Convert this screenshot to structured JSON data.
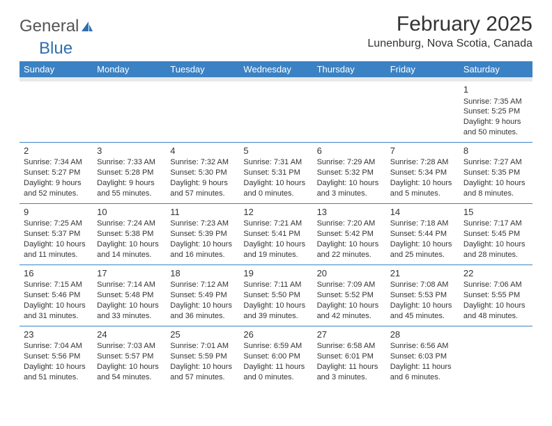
{
  "logo": {
    "text1": "General",
    "text2": "Blue"
  },
  "title": "February 2025",
  "location": "Lunenburg, Nova Scotia, Canada",
  "colors": {
    "header_bg": "#3b82c4",
    "header_text": "#ffffff",
    "border": "#3b82c4",
    "spacer_bg": "#e8e8e8",
    "text": "#333333",
    "logo_gray": "#555555",
    "logo_blue": "#2f6fb0"
  },
  "dayHeaders": [
    "Sunday",
    "Monday",
    "Tuesday",
    "Wednesday",
    "Thursday",
    "Friday",
    "Saturday"
  ],
  "weeks": [
    [
      null,
      null,
      null,
      null,
      null,
      null,
      {
        "n": "1",
        "sr": "Sunrise: 7:35 AM",
        "ss": "Sunset: 5:25 PM",
        "d1": "Daylight: 9 hours",
        "d2": "and 50 minutes."
      }
    ],
    [
      {
        "n": "2",
        "sr": "Sunrise: 7:34 AM",
        "ss": "Sunset: 5:27 PM",
        "d1": "Daylight: 9 hours",
        "d2": "and 52 minutes."
      },
      {
        "n": "3",
        "sr": "Sunrise: 7:33 AM",
        "ss": "Sunset: 5:28 PM",
        "d1": "Daylight: 9 hours",
        "d2": "and 55 minutes."
      },
      {
        "n": "4",
        "sr": "Sunrise: 7:32 AM",
        "ss": "Sunset: 5:30 PM",
        "d1": "Daylight: 9 hours",
        "d2": "and 57 minutes."
      },
      {
        "n": "5",
        "sr": "Sunrise: 7:31 AM",
        "ss": "Sunset: 5:31 PM",
        "d1": "Daylight: 10 hours",
        "d2": "and 0 minutes."
      },
      {
        "n": "6",
        "sr": "Sunrise: 7:29 AM",
        "ss": "Sunset: 5:32 PM",
        "d1": "Daylight: 10 hours",
        "d2": "and 3 minutes."
      },
      {
        "n": "7",
        "sr": "Sunrise: 7:28 AM",
        "ss": "Sunset: 5:34 PM",
        "d1": "Daylight: 10 hours",
        "d2": "and 5 minutes."
      },
      {
        "n": "8",
        "sr": "Sunrise: 7:27 AM",
        "ss": "Sunset: 5:35 PM",
        "d1": "Daylight: 10 hours",
        "d2": "and 8 minutes."
      }
    ],
    [
      {
        "n": "9",
        "sr": "Sunrise: 7:25 AM",
        "ss": "Sunset: 5:37 PM",
        "d1": "Daylight: 10 hours",
        "d2": "and 11 minutes."
      },
      {
        "n": "10",
        "sr": "Sunrise: 7:24 AM",
        "ss": "Sunset: 5:38 PM",
        "d1": "Daylight: 10 hours",
        "d2": "and 14 minutes."
      },
      {
        "n": "11",
        "sr": "Sunrise: 7:23 AM",
        "ss": "Sunset: 5:39 PM",
        "d1": "Daylight: 10 hours",
        "d2": "and 16 minutes."
      },
      {
        "n": "12",
        "sr": "Sunrise: 7:21 AM",
        "ss": "Sunset: 5:41 PM",
        "d1": "Daylight: 10 hours",
        "d2": "and 19 minutes."
      },
      {
        "n": "13",
        "sr": "Sunrise: 7:20 AM",
        "ss": "Sunset: 5:42 PM",
        "d1": "Daylight: 10 hours",
        "d2": "and 22 minutes."
      },
      {
        "n": "14",
        "sr": "Sunrise: 7:18 AM",
        "ss": "Sunset: 5:44 PM",
        "d1": "Daylight: 10 hours",
        "d2": "and 25 minutes."
      },
      {
        "n": "15",
        "sr": "Sunrise: 7:17 AM",
        "ss": "Sunset: 5:45 PM",
        "d1": "Daylight: 10 hours",
        "d2": "and 28 minutes."
      }
    ],
    [
      {
        "n": "16",
        "sr": "Sunrise: 7:15 AM",
        "ss": "Sunset: 5:46 PM",
        "d1": "Daylight: 10 hours",
        "d2": "and 31 minutes."
      },
      {
        "n": "17",
        "sr": "Sunrise: 7:14 AM",
        "ss": "Sunset: 5:48 PM",
        "d1": "Daylight: 10 hours",
        "d2": "and 33 minutes."
      },
      {
        "n": "18",
        "sr": "Sunrise: 7:12 AM",
        "ss": "Sunset: 5:49 PM",
        "d1": "Daylight: 10 hours",
        "d2": "and 36 minutes."
      },
      {
        "n": "19",
        "sr": "Sunrise: 7:11 AM",
        "ss": "Sunset: 5:50 PM",
        "d1": "Daylight: 10 hours",
        "d2": "and 39 minutes."
      },
      {
        "n": "20",
        "sr": "Sunrise: 7:09 AM",
        "ss": "Sunset: 5:52 PM",
        "d1": "Daylight: 10 hours",
        "d2": "and 42 minutes."
      },
      {
        "n": "21",
        "sr": "Sunrise: 7:08 AM",
        "ss": "Sunset: 5:53 PM",
        "d1": "Daylight: 10 hours",
        "d2": "and 45 minutes."
      },
      {
        "n": "22",
        "sr": "Sunrise: 7:06 AM",
        "ss": "Sunset: 5:55 PM",
        "d1": "Daylight: 10 hours",
        "d2": "and 48 minutes."
      }
    ],
    [
      {
        "n": "23",
        "sr": "Sunrise: 7:04 AM",
        "ss": "Sunset: 5:56 PM",
        "d1": "Daylight: 10 hours",
        "d2": "and 51 minutes."
      },
      {
        "n": "24",
        "sr": "Sunrise: 7:03 AM",
        "ss": "Sunset: 5:57 PM",
        "d1": "Daylight: 10 hours",
        "d2": "and 54 minutes."
      },
      {
        "n": "25",
        "sr": "Sunrise: 7:01 AM",
        "ss": "Sunset: 5:59 PM",
        "d1": "Daylight: 10 hours",
        "d2": "and 57 minutes."
      },
      {
        "n": "26",
        "sr": "Sunrise: 6:59 AM",
        "ss": "Sunset: 6:00 PM",
        "d1": "Daylight: 11 hours",
        "d2": "and 0 minutes."
      },
      {
        "n": "27",
        "sr": "Sunrise: 6:58 AM",
        "ss": "Sunset: 6:01 PM",
        "d1": "Daylight: 11 hours",
        "d2": "and 3 minutes."
      },
      {
        "n": "28",
        "sr": "Sunrise: 6:56 AM",
        "ss": "Sunset: 6:03 PM",
        "d1": "Daylight: 11 hours",
        "d2": "and 6 minutes."
      },
      null
    ]
  ]
}
